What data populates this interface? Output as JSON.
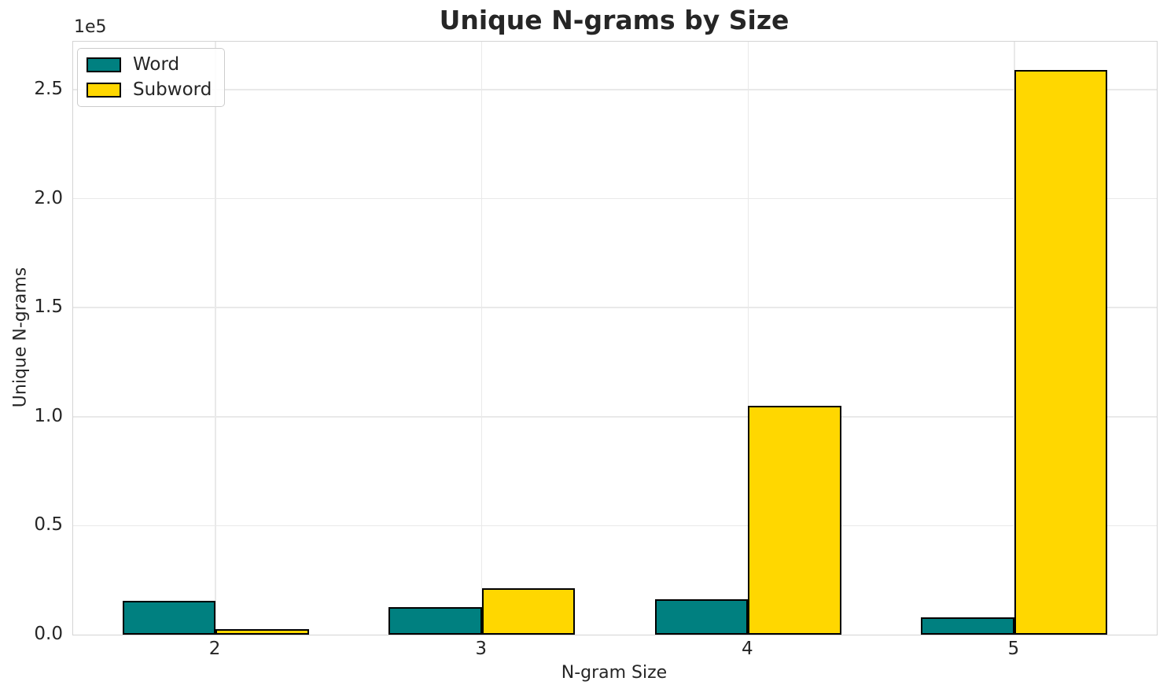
{
  "figure": {
    "background": "#ffffff",
    "text_color": "#262626",
    "grid_color": "#e9e9e9",
    "spine_color": "#d4d4d4"
  },
  "chart_data": {
    "type": "bar",
    "title": "Unique N-grams by Size",
    "xlabel": "N-gram Size",
    "ylabel": "Unique N-grams",
    "categories": [
      "2",
      "3",
      "4",
      "5"
    ],
    "x_positions": [
      2,
      3,
      4,
      5
    ],
    "series": [
      {
        "name": "Word",
        "color": "#008080",
        "values": [
          15600,
          12800,
          16200,
          8100
        ]
      },
      {
        "name": "Subword",
        "color": "#FFD700",
        "values": [
          2500,
          21300,
          105000,
          259000
        ]
      }
    ],
    "bar_edge_color": "#000000",
    "bar_width": 0.35,
    "xlim": [
      1.465,
      5.535
    ],
    "ylim": [
      0,
      272000
    ],
    "yticks": {
      "values": [
        0,
        50000,
        100000,
        150000,
        200000,
        250000
      ],
      "labels": [
        "0.0",
        "0.5",
        "1.0",
        "1.5",
        "2.0",
        "2.5"
      ],
      "offset_label": "1e5"
    },
    "grid": true,
    "legend": {
      "position": "upper-left"
    }
  }
}
